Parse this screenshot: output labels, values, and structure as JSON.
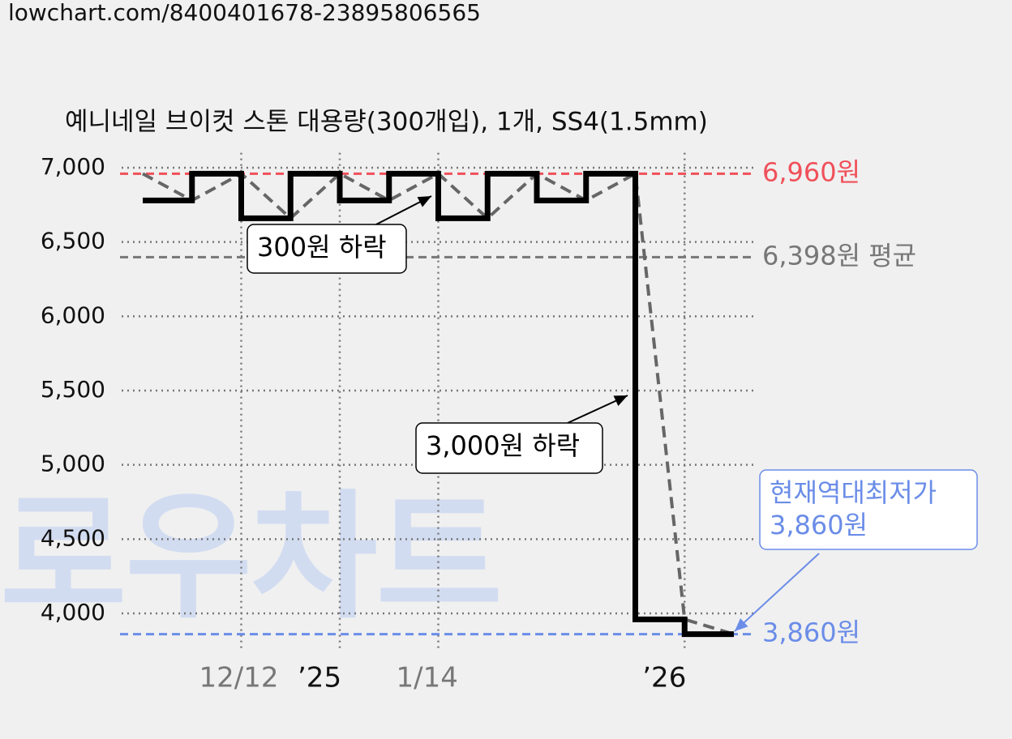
{
  "url": "lowchart.com/8400401678-23895806565",
  "watermark": "로우차트",
  "chart_data": {
    "type": "step",
    "title": "예니네일 브이컷 스톤 대용량(300개입), 1개, SS4(1.5mm)",
    "categories": [
      null,
      null,
      "12/12",
      null,
      "’25",
      null,
      "1/14",
      null,
      null,
      null,
      null,
      "’26",
      null
    ],
    "series": [
      {
        "color": "#000000",
        "values": [
          6780,
          6960,
          6660,
          6960,
          6780,
          6960,
          6660,
          6960,
          6780,
          6960,
          3960,
          3860,
          3860
        ]
      },
      {
        "color": "#666666",
        "style": "dashed",
        "values": [
          6960,
          6780,
          6960,
          6660,
          6960,
          6780,
          6960,
          6660,
          6960,
          6780,
          6960,
          3960,
          3860
        ]
      }
    ],
    "ylim": [
      3800,
      7100
    ],
    "yticks": [
      {
        "value": 4000,
        "label": "4,000"
      },
      {
        "value": 4500,
        "label": "4,500"
      },
      {
        "value": 5000,
        "label": "5,000"
      },
      {
        "value": 5500,
        "label": "5,500"
      },
      {
        "value": 6000,
        "label": "6,000"
      },
      {
        "value": 6500,
        "label": "6,500"
      },
      {
        "value": 7000,
        "label": "7,000"
      }
    ],
    "grid": true,
    "reference_lines": [
      {
        "value": 6960,
        "label": "6,960원",
        "color": "#f0505a"
      },
      {
        "value": 6398,
        "label": "6,398원 평균",
        "color": "#777777"
      },
      {
        "value": 3860,
        "label": "3,860원",
        "color": "#6b8de8"
      }
    ],
    "annotations": [
      {
        "lines": [
          "300원 하락"
        ],
        "color": "#000000"
      },
      {
        "lines": [
          "3,000원 하락"
        ],
        "color": "#000000"
      },
      {
        "lines": [
          "현재역대최저가",
          "3,860원"
        ],
        "color": "#6b8de8"
      }
    ]
  }
}
